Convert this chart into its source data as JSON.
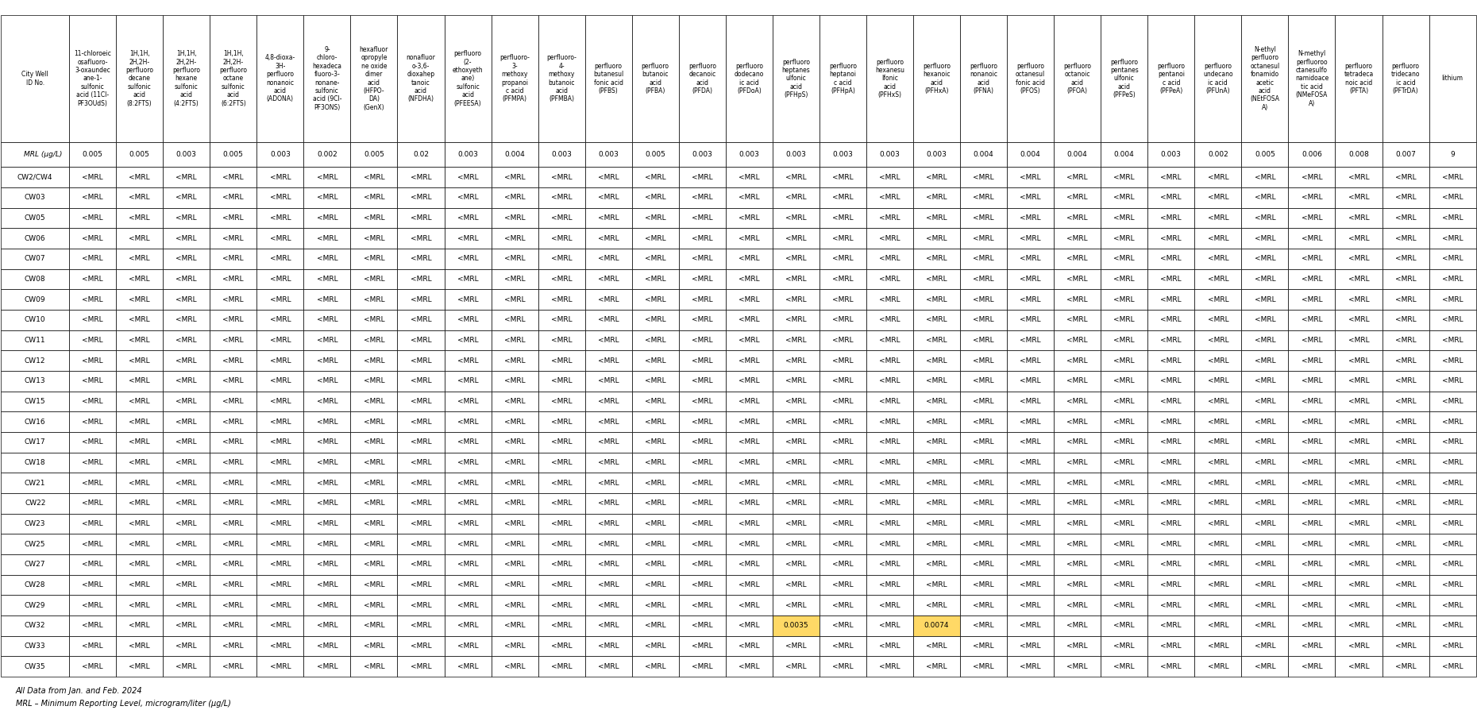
{
  "col_headers": [
    "City Well\nID No.",
    "11-chloroeic\nosafluoro-\n3-oxaundec\nane-1-\nsulfonic\nacid (11Cl-\nPF3OUdS)",
    "1H,1H,\n2H,2H-\nperfluoro\ndecane\nsulfonic\nacid\n(8:2FTS)",
    "1H,1H,\n2H,2H-\nperfluoro\nhexane\nsulfonic\nacid\n(4:2FTS)",
    "1H,1H,\n2H,2H-\nperfluoro\noctane\nsulfonic\nacid\n(6:2FTS)",
    "4,8-dioxa-\n3H-\nperfluoro\nnonanoic\nacid\n(ADONA)",
    "9-\nchloro-\nhexadeca\nfluoro-3-\nnonane-\nsulfonic\nacid (9Cl-\nPF3ONS)",
    "hexafluor\nopropyle\nne oxide\ndimer\nacid\n(HFPO-\nDA)\n(GenX)",
    "nonafluor\no-3,6-\ndioxahep\ntanoic\nacid\n(NFDHA)",
    "perfluoro\n(2-\nethoxyeth\nane)\nsulfonic\nacid\n(PFEESA)",
    "perfluoro-\n3-\nmethoxy\npropanoi\nc acid\n(PFMPA)",
    "perfluoro-\n4-\nmethoxy\nbutanoic\nacid\n(PFMBA)",
    "perfluoro\nbutanesul\nfonic acid\n(PFBS)",
    "perfluoro\nbutanoic\nacid\n(PFBA)",
    "perfluoro\ndecanoic\nacid\n(PFDA)",
    "perfluoro\ndodecano\nic acid\n(PFDoA)",
    "perfluoro\nheptanes\nulfonic\nacid\n(PFHpS)",
    "perfluoro\nheptanoi\nc acid\n(PFHpA)",
    "perfluoro\nhexanesu\nlfonic\nacid\n(PFHxS)",
    "perfluoro\nhexanoic\nacid\n(PFHxA)",
    "perfluoro\nnonanoic\nacid\n(PFNA)",
    "perfluoro\noctanesul\nfonic acid\n(PFOS)",
    "perfluoro\noctanoic\nacid\n(PFOA)",
    "perfluoro\npentanes\nulfonic\nacid\n(PFPeS)",
    "perfluoro\npentanoi\nc acid\n(PFPeA)",
    "perfluoro\nundecano\nic acid\n(PFUnA)",
    "N-ethyl\nperfluoro\noctanesul\nfonamido\nacetic\nacid\n(NEtFOSA\nA)",
    "N-methyl\nperfluoroo\nctanesulfo\nnamidoace\ntic acid\n(NMeFOSA\nA)",
    "perfluoro\ntetradeca\nnoic acid\n(PFTA)",
    "perfluoro\ntridecano\nic acid\n(PFTrDA)",
    "lithium"
  ],
  "mrl_row": [
    "MRL (μg/L)",
    "0.005",
    "0.005",
    "0.003",
    "0.005",
    "0.003",
    "0.002",
    "0.005",
    "0.02",
    "0.003",
    "0.004",
    "0.003",
    "0.003",
    "0.005",
    "0.003",
    "0.003",
    "0.003",
    "0.003",
    "0.003",
    "0.003",
    "0.004",
    "0.004",
    "0.004",
    "0.004",
    "0.003",
    "0.002",
    "0.005",
    "0.006",
    "0.008",
    "0.007",
    "9"
  ],
  "well_ids": [
    "CW2/CW4",
    "CW03",
    "CW05",
    "CW06",
    "CW07",
    "CW08",
    "CW09",
    "CW10",
    "CW11",
    "CW12",
    "CW13",
    "CW15",
    "CW16",
    "CW17",
    "CW18",
    "CW21",
    "CW22",
    "CW23",
    "CW25",
    "CW27",
    "CW28",
    "CW29",
    "CW32",
    "CW33",
    "CW35"
  ],
  "data": {
    "CW2/CW4": [
      "<MRL",
      "<MRL",
      "<MRL",
      "<MRL",
      "<MRL",
      "<MRL",
      "<MRL",
      "<MRL",
      "<MRL",
      "<MRL",
      "<MRL",
      "<MRL",
      "<MRL",
      "<MRL",
      "<MRL",
      "<MRL",
      "<MRL",
      "<MRL",
      "<MRL",
      "<MRL",
      "<MRL",
      "<MRL",
      "<MRL",
      "<MRL",
      "<MRL",
      "<MRL",
      "<MRL",
      "<MRL",
      "<MRL",
      "<MRL"
    ],
    "CW03": [
      "<MRL",
      "<MRL",
      "<MRL",
      "<MRL",
      "<MRL",
      "<MRL",
      "<MRL",
      "<MRL",
      "<MRL",
      "<MRL",
      "<MRL",
      "<MRL",
      "<MRL",
      "<MRL",
      "<MRL",
      "<MRL",
      "<MRL",
      "<MRL",
      "<MRL",
      "<MRL",
      "<MRL",
      "<MRL",
      "<MRL",
      "<MRL",
      "<MRL",
      "<MRL",
      "<MRL",
      "<MRL",
      "<MRL",
      "<MRL"
    ],
    "CW05": [
      "<MRL",
      "<MRL",
      "<MRL",
      "<MRL",
      "<MRL",
      "<MRL",
      "<MRL",
      "<MRL",
      "<MRL",
      "<MRL",
      "<MRL",
      "<MRL",
      "<MRL",
      "<MRL",
      "<MRL",
      "<MRL",
      "<MRL",
      "<MRL",
      "<MRL",
      "<MRL",
      "<MRL",
      "<MRL",
      "<MRL",
      "<MRL",
      "<MRL",
      "<MRL",
      "<MRL",
      "<MRL",
      "<MRL",
      "<MRL"
    ],
    "CW06": [
      "<MRL",
      "<MRL",
      "<MRL",
      "<MRL",
      "<MRL",
      "<MRL",
      "<MRL",
      "<MRL",
      "<MRL",
      "<MRL",
      "<MRL",
      "<MRL",
      "<MRL",
      "<MRL",
      "<MRL",
      "<MRL",
      "<MRL",
      "<MRL",
      "<MRL",
      "<MRL",
      "<MRL",
      "<MRL",
      "<MRL",
      "<MRL",
      "<MRL",
      "<MRL",
      "<MRL",
      "<MRL",
      "<MRL",
      "<MRL"
    ],
    "CW07": [
      "<MRL",
      "<MRL",
      "<MRL",
      "<MRL",
      "<MRL",
      "<MRL",
      "<MRL",
      "<MRL",
      "<MRL",
      "<MRL",
      "<MRL",
      "<MRL",
      "<MRL",
      "<MRL",
      "<MRL",
      "<MRL",
      "<MRL",
      "<MRL",
      "<MRL",
      "<MRL",
      "<MRL",
      "<MRL",
      "<MRL",
      "<MRL",
      "<MRL",
      "<MRL",
      "<MRL",
      "<MRL",
      "<MRL",
      "<MRL"
    ],
    "CW08": [
      "<MRL",
      "<MRL",
      "<MRL",
      "<MRL",
      "<MRL",
      "<MRL",
      "<MRL",
      "<MRL",
      "<MRL",
      "<MRL",
      "<MRL",
      "<MRL",
      "<MRL",
      "<MRL",
      "<MRL",
      "<MRL",
      "<MRL",
      "<MRL",
      "<MRL",
      "<MRL",
      "<MRL",
      "<MRL",
      "<MRL",
      "<MRL",
      "<MRL",
      "<MRL",
      "<MRL",
      "<MRL",
      "<MRL",
      "<MRL"
    ],
    "CW09": [
      "<MRL",
      "<MRL",
      "<MRL",
      "<MRL",
      "<MRL",
      "<MRL",
      "<MRL",
      "<MRL",
      "<MRL",
      "<MRL",
      "<MRL",
      "<MRL",
      "<MRL",
      "<MRL",
      "<MRL",
      "<MRL",
      "<MRL",
      "<MRL",
      "<MRL",
      "<MRL",
      "<MRL",
      "<MRL",
      "<MRL",
      "<MRL",
      "<MRL",
      "<MRL",
      "<MRL",
      "<MRL",
      "<MRL",
      "<MRL"
    ],
    "CW10": [
      "<MRL",
      "<MRL",
      "<MRL",
      "<MRL",
      "<MRL",
      "<MRL",
      "<MRL",
      "<MRL",
      "<MRL",
      "<MRL",
      "<MRL",
      "<MRL",
      "<MRL",
      "<MRL",
      "<MRL",
      "<MRL",
      "<MRL",
      "<MRL",
      "<MRL",
      "<MRL",
      "<MRL",
      "<MRL",
      "<MRL",
      "<MRL",
      "<MRL",
      "<MRL",
      "<MRL",
      "<MRL",
      "<MRL",
      "<MRL"
    ],
    "CW11": [
      "<MRL",
      "<MRL",
      "<MRL",
      "<MRL",
      "<MRL",
      "<MRL",
      "<MRL",
      "<MRL",
      "<MRL",
      "<MRL",
      "<MRL",
      "<MRL",
      "<MRL",
      "<MRL",
      "<MRL",
      "<MRL",
      "<MRL",
      "<MRL",
      "<MRL",
      "<MRL",
      "<MRL",
      "<MRL",
      "<MRL",
      "<MRL",
      "<MRL",
      "<MRL",
      "<MRL",
      "<MRL",
      "<MRL",
      "<MRL"
    ],
    "CW12": [
      "<MRL",
      "<MRL",
      "<MRL",
      "<MRL",
      "<MRL",
      "<MRL",
      "<MRL",
      "<MRL",
      "<MRL",
      "<MRL",
      "<MRL",
      "<MRL",
      "<MRL",
      "<MRL",
      "<MRL",
      "<MRL",
      "<MRL",
      "<MRL",
      "<MRL",
      "<MRL",
      "<MRL",
      "<MRL",
      "<MRL",
      "<MRL",
      "<MRL",
      "<MRL",
      "<MRL",
      "<MRL",
      "<MRL",
      "<MRL"
    ],
    "CW13": [
      "<MRL",
      "<MRL",
      "<MRL",
      "<MRL",
      "<MRL",
      "<MRL",
      "<MRL",
      "<MRL",
      "<MRL",
      "<MRL",
      "<MRL",
      "<MRL",
      "<MRL",
      "<MRL",
      "<MRL",
      "<MRL",
      "<MRL",
      "<MRL",
      "<MRL",
      "<MRL",
      "<MRL",
      "<MRL",
      "<MRL",
      "<MRL",
      "<MRL",
      "<MRL",
      "<MRL",
      "<MRL",
      "<MRL",
      "<MRL"
    ],
    "CW15": [
      "<MRL",
      "<MRL",
      "<MRL",
      "<MRL",
      "<MRL",
      "<MRL",
      "<MRL",
      "<MRL",
      "<MRL",
      "<MRL",
      "<MRL",
      "<MRL",
      "<MRL",
      "<MRL",
      "<MRL",
      "<MRL",
      "<MRL",
      "<MRL",
      "<MRL",
      "<MRL",
      "<MRL",
      "<MRL",
      "<MRL",
      "<MRL",
      "<MRL",
      "<MRL",
      "<MRL",
      "<MRL",
      "<MRL",
      "<MRL"
    ],
    "CW16": [
      "<MRL",
      "<MRL",
      "<MRL",
      "<MRL",
      "<MRL",
      "<MRL",
      "<MRL",
      "<MRL",
      "<MRL",
      "<MRL",
      "<MRL",
      "<MRL",
      "<MRL",
      "<MRL",
      "<MRL",
      "<MRL",
      "<MRL",
      "<MRL",
      "<MRL",
      "<MRL",
      "<MRL",
      "<MRL",
      "<MRL",
      "<MRL",
      "<MRL",
      "<MRL",
      "<MRL",
      "<MRL",
      "<MRL",
      "<MRL"
    ],
    "CW17": [
      "<MRL",
      "<MRL",
      "<MRL",
      "<MRL",
      "<MRL",
      "<MRL",
      "<MRL",
      "<MRL",
      "<MRL",
      "<MRL",
      "<MRL",
      "<MRL",
      "<MRL",
      "<MRL",
      "<MRL",
      "<MRL",
      "<MRL",
      "<MRL",
      "<MRL",
      "<MRL",
      "<MRL",
      "<MRL",
      "<MRL",
      "<MRL",
      "<MRL",
      "<MRL",
      "<MRL",
      "<MRL",
      "<MRL",
      "<MRL"
    ],
    "CW18": [
      "<MRL",
      "<MRL",
      "<MRL",
      "<MRL",
      "<MRL",
      "<MRL",
      "<MRL",
      "<MRL",
      "<MRL",
      "<MRL",
      "<MRL",
      "<MRL",
      "<MRL",
      "<MRL",
      "<MRL",
      "<MRL",
      "<MRL",
      "<MRL",
      "<MRL",
      "<MRL",
      "<MRL",
      "<MRL",
      "<MRL",
      "<MRL",
      "<MRL",
      "<MRL",
      "<MRL",
      "<MRL",
      "<MRL",
      "<MRL"
    ],
    "CW21": [
      "<MRL",
      "<MRL",
      "<MRL",
      "<MRL",
      "<MRL",
      "<MRL",
      "<MRL",
      "<MRL",
      "<MRL",
      "<MRL",
      "<MRL",
      "<MRL",
      "<MRL",
      "<MRL",
      "<MRL",
      "<MRL",
      "<MRL",
      "<MRL",
      "<MRL",
      "<MRL",
      "<MRL",
      "<MRL",
      "<MRL",
      "<MRL",
      "<MRL",
      "<MRL",
      "<MRL",
      "<MRL",
      "<MRL",
      "<MRL"
    ],
    "CW22": [
      "<MRL",
      "<MRL",
      "<MRL",
      "<MRL",
      "<MRL",
      "<MRL",
      "<MRL",
      "<MRL",
      "<MRL",
      "<MRL",
      "<MRL",
      "<MRL",
      "<MRL",
      "<MRL",
      "<MRL",
      "<MRL",
      "<MRL",
      "<MRL",
      "<MRL",
      "<MRL",
      "<MRL",
      "<MRL",
      "<MRL",
      "<MRL",
      "<MRL",
      "<MRL",
      "<MRL",
      "<MRL",
      "<MRL",
      "<MRL"
    ],
    "CW23": [
      "<MRL",
      "<MRL",
      "<MRL",
      "<MRL",
      "<MRL",
      "<MRL",
      "<MRL",
      "<MRL",
      "<MRL",
      "<MRL",
      "<MRL",
      "<MRL",
      "<MRL",
      "<MRL",
      "<MRL",
      "<MRL",
      "<MRL",
      "<MRL",
      "<MRL",
      "<MRL",
      "<MRL",
      "<MRL",
      "<MRL",
      "<MRL",
      "<MRL",
      "<MRL",
      "<MRL",
      "<MRL",
      "<MRL",
      "<MRL"
    ],
    "CW25": [
      "<MRL",
      "<MRL",
      "<MRL",
      "<MRL",
      "<MRL",
      "<MRL",
      "<MRL",
      "<MRL",
      "<MRL",
      "<MRL",
      "<MRL",
      "<MRL",
      "<MRL",
      "<MRL",
      "<MRL",
      "<MRL",
      "<MRL",
      "<MRL",
      "<MRL",
      "<MRL",
      "<MRL",
      "<MRL",
      "<MRL",
      "<MRL",
      "<MRL",
      "<MRL",
      "<MRL",
      "<MRL",
      "<MRL",
      "<MRL"
    ],
    "CW27": [
      "<MRL",
      "<MRL",
      "<MRL",
      "<MRL",
      "<MRL",
      "<MRL",
      "<MRL",
      "<MRL",
      "<MRL",
      "<MRL",
      "<MRL",
      "<MRL",
      "<MRL",
      "<MRL",
      "<MRL",
      "<MRL",
      "<MRL",
      "<MRL",
      "<MRL",
      "<MRL",
      "<MRL",
      "<MRL",
      "<MRL",
      "<MRL",
      "<MRL",
      "<MRL",
      "<MRL",
      "<MRL",
      "<MRL",
      "<MRL"
    ],
    "CW28": [
      "<MRL",
      "<MRL",
      "<MRL",
      "<MRL",
      "<MRL",
      "<MRL",
      "<MRL",
      "<MRL",
      "<MRL",
      "<MRL",
      "<MRL",
      "<MRL",
      "<MRL",
      "<MRL",
      "<MRL",
      "<MRL",
      "<MRL",
      "<MRL",
      "<MRL",
      "<MRL",
      "<MRL",
      "<MRL",
      "<MRL",
      "<MRL",
      "<MRL",
      "<MRL",
      "<MRL",
      "<MRL",
      "<MRL",
      "<MRL"
    ],
    "CW29": [
      "<MRL",
      "<MRL",
      "<MRL",
      "<MRL",
      "<MRL",
      "<MRL",
      "<MRL",
      "<MRL",
      "<MRL",
      "<MRL",
      "<MRL",
      "<MRL",
      "<MRL",
      "<MRL",
      "<MRL",
      "<MRL",
      "<MRL",
      "<MRL",
      "<MRL",
      "<MRL",
      "<MRL",
      "<MRL",
      "<MRL",
      "<MRL",
      "<MRL",
      "<MRL",
      "<MRL",
      "<MRL",
      "<MRL",
      "<MRL"
    ],
    "CW32": [
      "<MRL",
      "<MRL",
      "<MRL",
      "<MRL",
      "<MRL",
      "<MRL",
      "<MRL",
      "<MRL",
      "<MRL",
      "<MRL",
      "<MRL",
      "<MRL",
      "<MRL",
      "<MRL",
      "<MRL",
      "0.0035",
      "<MRL",
      "<MRL",
      "0.0074",
      "<MRL",
      "<MRL",
      "<MRL",
      "<MRL",
      "<MRL",
      "<MRL",
      "<MRL",
      "<MRL",
      "<MRL",
      "<MRL",
      "<MRL"
    ],
    "CW33": [
      "<MRL",
      "<MRL",
      "<MRL",
      "<MRL",
      "<MRL",
      "<MRL",
      "<MRL",
      "<MRL",
      "<MRL",
      "<MRL",
      "<MRL",
      "<MRL",
      "<MRL",
      "<MRL",
      "<MRL",
      "<MRL",
      "<MRL",
      "<MRL",
      "<MRL",
      "<MRL",
      "<MRL",
      "<MRL",
      "<MRL",
      "<MRL",
      "<MRL",
      "<MRL",
      "<MRL",
      "<MRL",
      "<MRL",
      "<MRL"
    ],
    "CW35": [
      "<MRL",
      "<MRL",
      "<MRL",
      "<MRL",
      "<MRL",
      "<MRL",
      "<MRL",
      "<MRL",
      "<MRL",
      "<MRL",
      "<MRL",
      "<MRL",
      "<MRL",
      "<MRL",
      "<MRL",
      "<MRL",
      "<MRL",
      "<MRL",
      "<MRL",
      "<MRL",
      "<MRL",
      "<MRL",
      "<MRL",
      "<MRL",
      "<MRL",
      "<MRL",
      "<MRL",
      "<MRL",
      "<MRL",
      "<MRL"
    ]
  },
  "footer_lines": [
    "All Data from Jan. and Feb. 2024",
    "MRL – Minimum Reporting Level, microgram/liter (μg/L)"
  ],
  "highlight_col_indices": [
    15,
    18
  ],
  "highlight_row": "CW32",
  "bg_color": "#ffffff",
  "header_bg": "#ffffff",
  "mrl_bg": "#ffffff",
  "cell_bg_default": "#ffffff",
  "cell_bg_highlight": "#ffd966",
  "border_color": "#000000",
  "text_color": "#000000",
  "header_fontsize": 5.5,
  "cell_fontsize": 6.5,
  "mrl_fontsize": 6.5
}
